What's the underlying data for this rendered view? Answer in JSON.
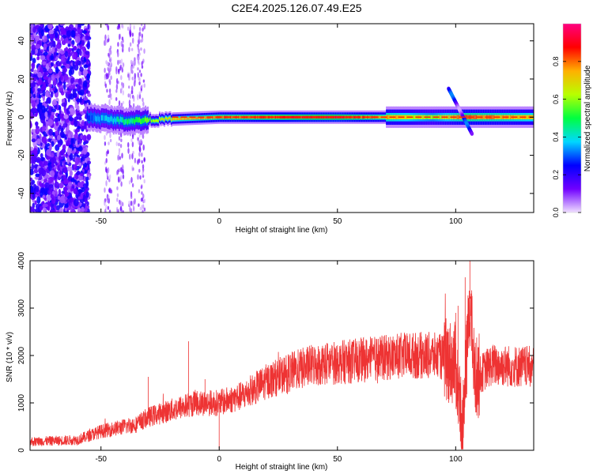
{
  "title": "C2E4.2025.126.07.49.E25",
  "chart_data": [
    {
      "type": "heatmap",
      "xlabel": "Height of straight line (km)",
      "ylabel": "Frequency (Hz)",
      "xlim": [
        -80,
        133
      ],
      "ylim": [
        -50,
        49
      ],
      "xticks": [
        -50,
        0,
        50,
        100
      ],
      "yticks": [
        -40,
        -20,
        0,
        20,
        40
      ],
      "colorbar": {
        "label": "Normalized spectral amplitude",
        "range": [
          0,
          1
        ],
        "ticks": [
          "0.0",
          "0.2",
          "0.4",
          "0.6",
          "0.8"
        ],
        "colors": [
          "#f0e0ff",
          "#7000ff",
          "#0000ff",
          "#00d8ff",
          "#00ff40",
          "#b8ff00",
          "#ffb000",
          "#ff0000",
          "#ff0080"
        ]
      },
      "ridge": {
        "description_points": [
          {
            "x": -56,
            "freq": 0,
            "amp": 0.3
          },
          {
            "x": -40,
            "freq": -2,
            "amp": 0.45
          },
          {
            "x": -20,
            "freq": -1,
            "amp": 0.7
          },
          {
            "x": 0,
            "freq": 0,
            "amp": 0.8
          },
          {
            "x": 50,
            "freq": 0,
            "amp": 0.9
          },
          {
            "x": 90,
            "freq": 0,
            "amp": 0.6
          },
          {
            "x": 104,
            "freq": 0,
            "amp": 0.8
          },
          {
            "x": 133,
            "freq": 0,
            "amp": 0.7
          }
        ],
        "noise_region": [
          -80,
          -55
        ]
      },
      "diagonal_feature": {
        "x": [
          97,
          107
        ],
        "freq": [
          15,
          -9
        ]
      }
    },
    {
      "type": "line",
      "xlabel": "Height of straight line (km)",
      "ylabel": "SNR (10 * v/v)",
      "xlim": [
        -80,
        133
      ],
      "ylim": [
        0,
        4000
      ],
      "xticks": [
        -50,
        0,
        50,
        100
      ],
      "yticks": [
        0,
        1000,
        2000,
        3000,
        4000
      ],
      "series": [
        {
          "color": "#ee3333",
          "trend_points": [
            {
              "x": -80,
              "y": 180
            },
            {
              "x": -60,
              "y": 220
            },
            {
              "x": -50,
              "y": 400
            },
            {
              "x": -45,
              "y": 450
            },
            {
              "x": -35,
              "y": 550
            },
            {
              "x": -30,
              "y": 700
            },
            {
              "x": -20,
              "y": 850
            },
            {
              "x": -10,
              "y": 1000
            },
            {
              "x": 0,
              "y": 1000
            },
            {
              "x": 10,
              "y": 1150
            },
            {
              "x": 20,
              "y": 1450
            },
            {
              "x": 30,
              "y": 1650
            },
            {
              "x": 40,
              "y": 1800
            },
            {
              "x": 50,
              "y": 1850
            },
            {
              "x": 60,
              "y": 1900
            },
            {
              "x": 70,
              "y": 1950
            },
            {
              "x": 80,
              "y": 2000
            },
            {
              "x": 90,
              "y": 2000
            },
            {
              "x": 95,
              "y": 1950
            },
            {
              "x": 100,
              "y": 1800
            },
            {
              "x": 103,
              "y": 400
            },
            {
              "x": 106,
              "y": 3200
            },
            {
              "x": 108,
              "y": 1500
            },
            {
              "x": 115,
              "y": 1800
            },
            {
              "x": 133,
              "y": 1750
            }
          ],
          "spikes": [
            {
              "x": -30,
              "y": 1550
            },
            {
              "x": -13,
              "y": 2300
            },
            {
              "x": -6,
              "y": 1500
            },
            {
              "x": 0,
              "y": 30
            },
            {
              "x": 100,
              "y": 2900
            },
            {
              "x": 101,
              "y": 3050
            },
            {
              "x": 104,
              "y": 3650
            },
            {
              "x": 106,
              "y": 4000
            },
            {
              "x": 103,
              "y": 250
            }
          ]
        }
      ]
    }
  ]
}
